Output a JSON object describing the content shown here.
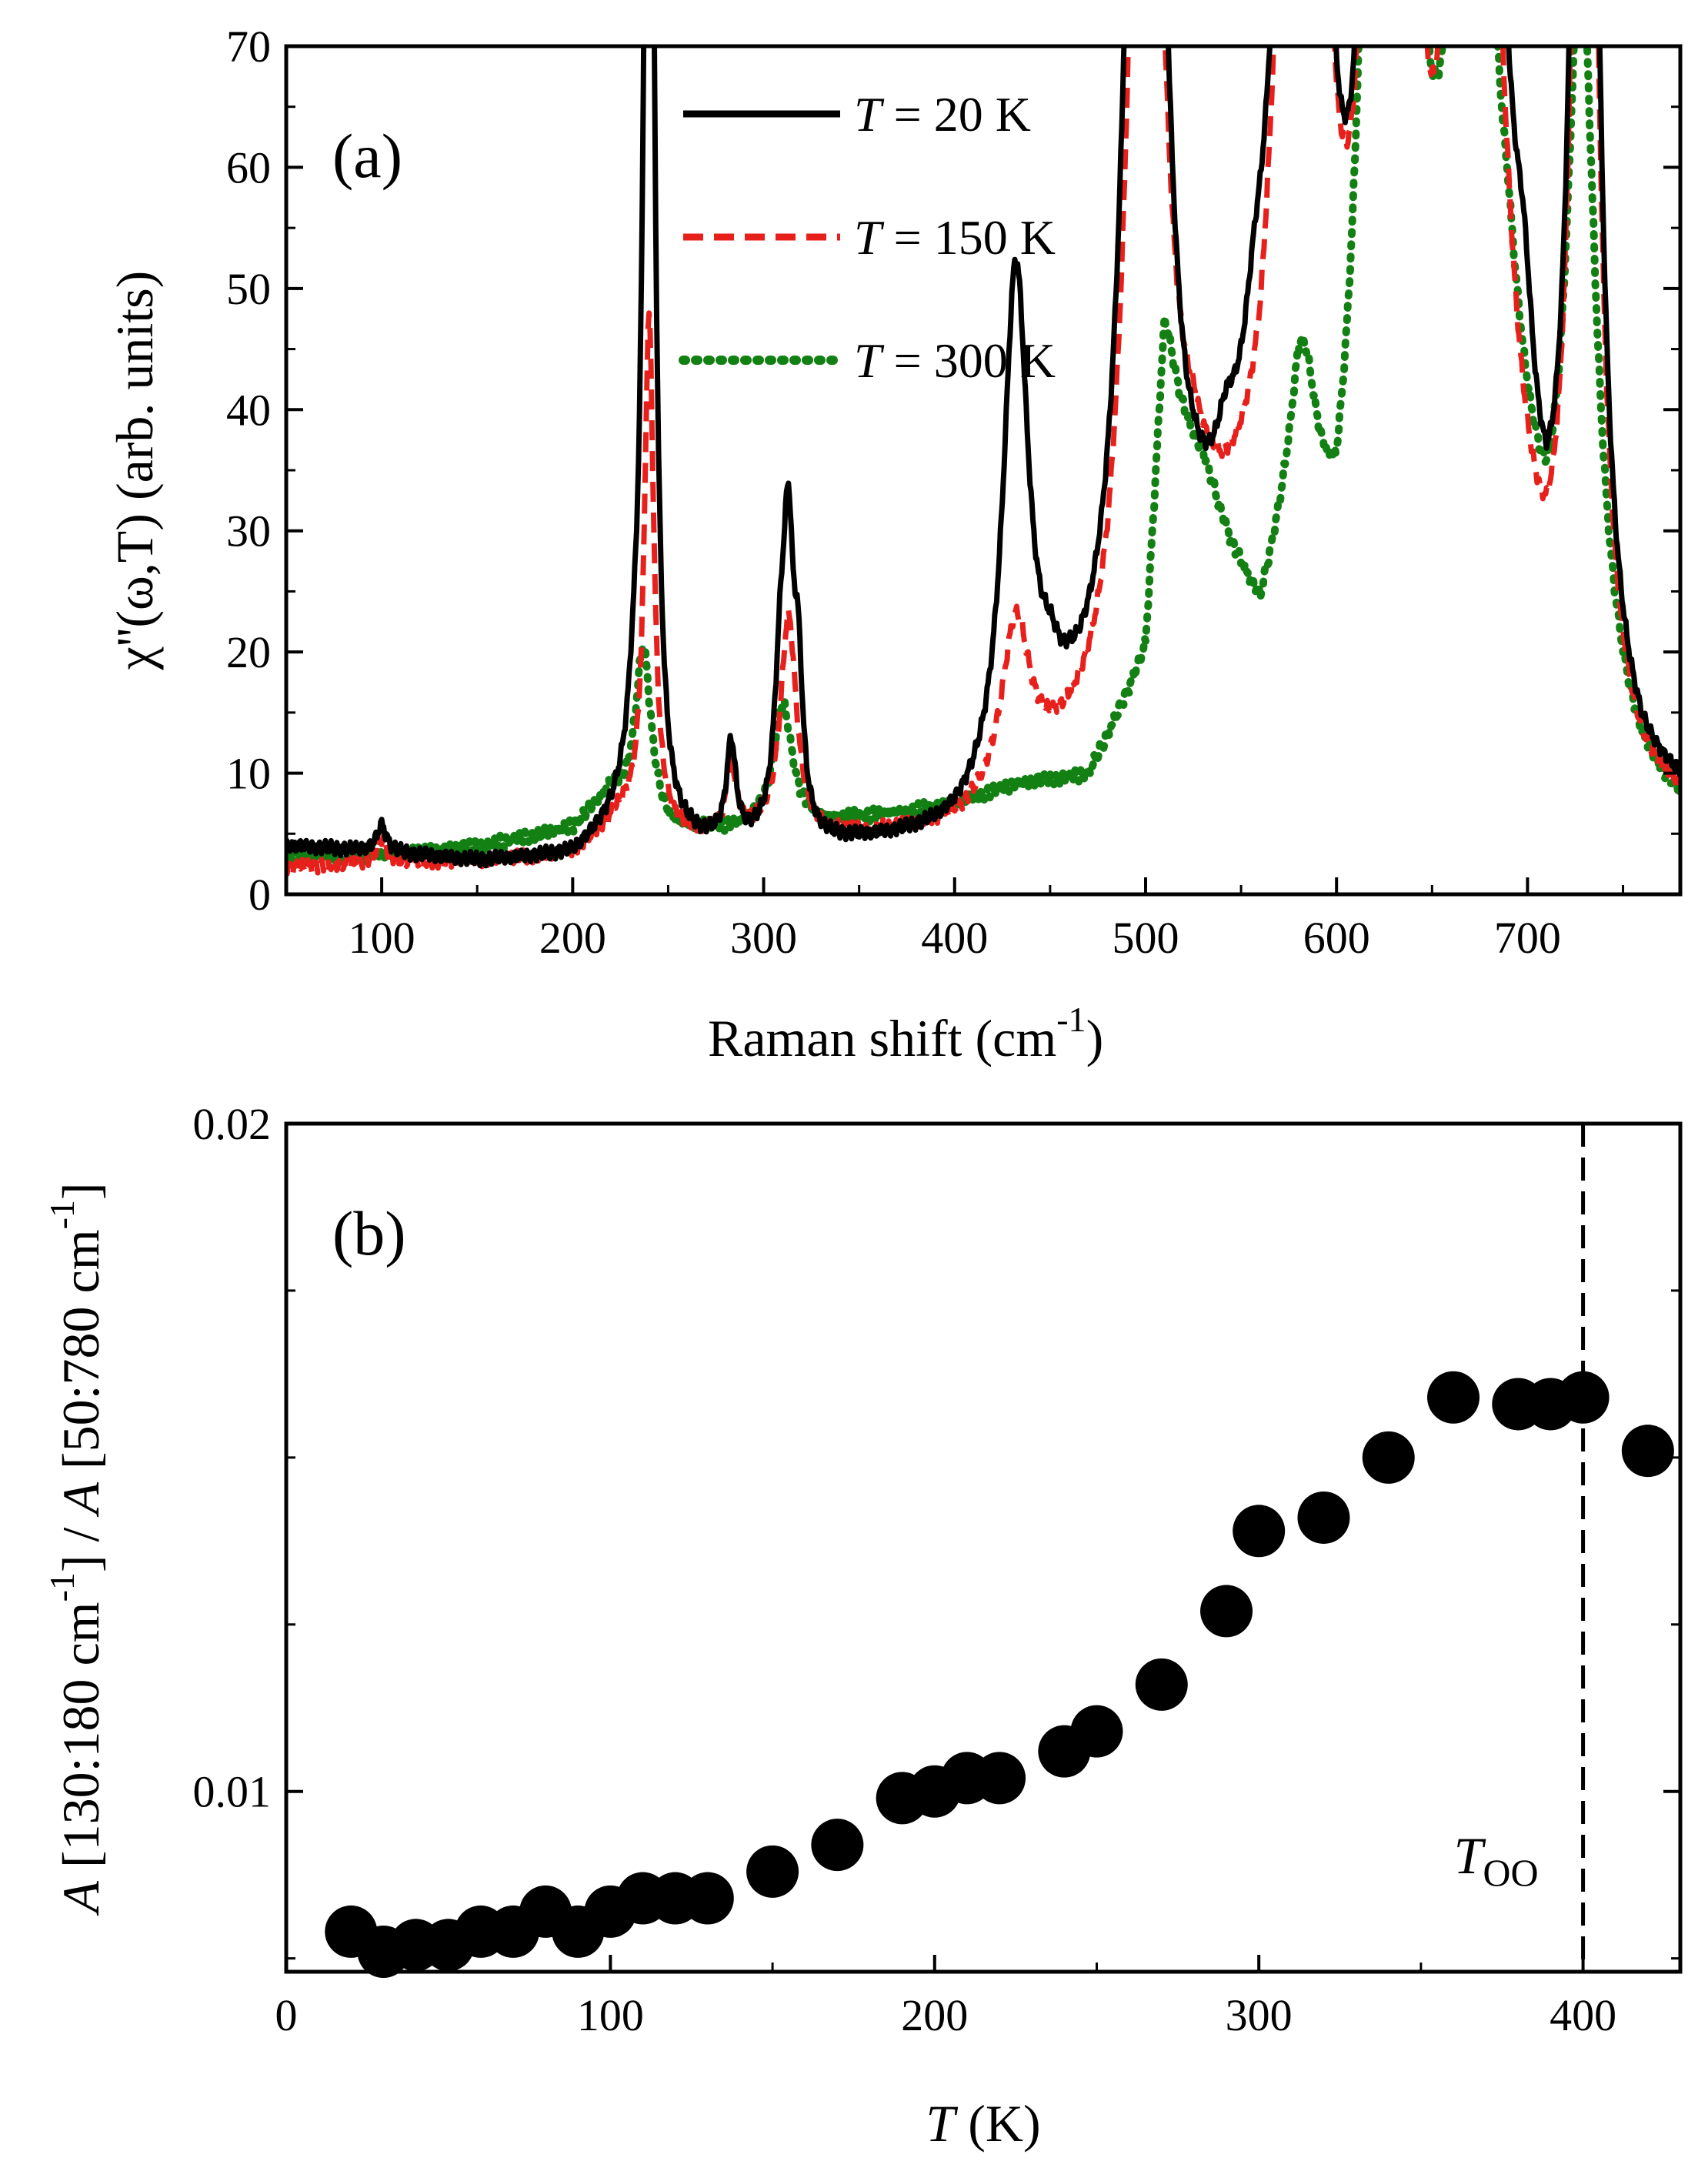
{
  "chart_data": [
    {
      "type": "line",
      "panel_label": "(a)",
      "xlabel": "Raman shift (cm",
      "xlabel_sup": "-1",
      "xlabel_close": ")",
      "ylabel": "χ''(ω,T) (arb. units)",
      "xlim": [
        50,
        780
      ],
      "ylim": [
        0,
        70
      ],
      "xticks": [
        "100",
        "200",
        "300",
        "400",
        "500",
        "600",
        "700"
      ],
      "xtick_values": [
        100,
        200,
        300,
        400,
        500,
        600,
        700
      ],
      "yticks": [
        "0",
        "10",
        "20",
        "30",
        "40",
        "50",
        "60",
        "70"
      ],
      "ytick_values": [
        0,
        10,
        20,
        30,
        40,
        50,
        60,
        70
      ],
      "legend_position": "top-center",
      "series": [
        {
          "name": "T = 20 K",
          "legend_italic": "T",
          "legend_rest": " = 20 K",
          "color": "#000000",
          "style": "solid",
          "baseline": [
            [
              50,
              3.8
            ],
            [
              100,
              3.2
            ],
            [
              150,
              2.4
            ],
            [
              200,
              2.6
            ],
            [
              225,
              5
            ],
            [
              250,
              3.2
            ],
            [
              280,
              3
            ],
            [
              300,
              3
            ],
            [
              330,
              3
            ],
            [
              400,
              3.2
            ],
            [
              430,
              5
            ],
            [
              460,
              8
            ],
            [
              480,
              7.8
            ],
            [
              510,
              10
            ],
            [
              525,
              15.8
            ],
            [
              540,
              19
            ],
            [
              560,
              24
            ],
            [
              580,
              32
            ],
            [
              600,
              14
            ],
            [
              620,
              20
            ],
            [
              640,
              14
            ],
            [
              660,
              22
            ],
            [
              690,
              24
            ],
            [
              710,
              10.5
            ],
            [
              740,
              9
            ],
            [
              760,
              6
            ],
            [
              780,
              5.8
            ]
          ],
          "peaks": [
            [
              100,
              2.2,
              3
            ],
            [
              232,
              5,
              4
            ],
            [
              240,
              120,
              3
            ],
            [
              283,
              8,
              3
            ],
            [
              309,
              13,
              4
            ],
            [
              313,
              20,
              3
            ],
            [
              318,
              12,
              3
            ],
            [
              432,
              43,
              8
            ],
            [
              450,
              3,
              6
            ],
            [
              500,
              150,
              9
            ],
            [
              542,
              4,
              6
            ],
            [
              557,
              5,
              6
            ],
            [
              583,
              150,
              10
            ],
            [
              622,
              150,
              5
            ],
            [
              634,
              150,
              6
            ],
            [
              655,
              8,
              3
            ],
            [
              672,
              150,
              10
            ],
            [
              698,
              10,
              6
            ],
            [
              730,
              150,
              6
            ]
          ]
        },
        {
          "name": "T = 150 K",
          "legend_italic": "T",
          "legend_rest": " = 150 K",
          "color": "#e8201c",
          "style": "dashed",
          "baseline": [
            [
              50,
              2
            ],
            [
              100,
              2.4
            ],
            [
              150,
              2.4
            ],
            [
              200,
              3
            ],
            [
              225,
              6
            ],
            [
              250,
              4.5
            ],
            [
              280,
              4
            ],
            [
              300,
              4.3
            ],
            [
              330,
              4
            ],
            [
              400,
              4.2
            ],
            [
              430,
              6
            ],
            [
              460,
              8.5
            ],
            [
              480,
              9.5
            ],
            [
              500,
              15
            ],
            [
              525,
              24
            ],
            [
              540,
              22
            ],
            [
              560,
              21
            ],
            [
              580,
              32
            ],
            [
              600,
              16
            ],
            [
              620,
              20
            ],
            [
              640,
              14
            ],
            [
              660,
              22
            ],
            [
              690,
              20
            ],
            [
              710,
              10
            ],
            [
              740,
              8
            ],
            [
              760,
              5.5
            ],
            [
              780,
              5
            ]
          ],
          "peaks": [
            [
              100,
              2,
              3
            ],
            [
              240,
              42,
              3
            ],
            [
              283,
              6,
              3
            ],
            [
              313,
              18,
              5
            ],
            [
              432,
              14,
              9
            ],
            [
              500,
              110,
              9
            ],
            [
              583,
              140,
              10
            ],
            [
              622,
              140,
              5
            ],
            [
              634,
              140,
              6
            ],
            [
              672,
              140,
              10
            ],
            [
              730,
              140,
              6
            ]
          ]
        },
        {
          "name": "T = 300 K",
          "legend_italic": "T",
          "legend_rest": " = 300 K",
          "color": "#138013",
          "style": "dotted",
          "baseline": [
            [
              50,
              3
            ],
            [
              100,
              3.2
            ],
            [
              150,
              3.8
            ],
            [
              200,
              5.2
            ],
            [
              220,
              8
            ],
            [
              250,
              4.8
            ],
            [
              300,
              5.2
            ],
            [
              330,
              5.5
            ],
            [
              400,
              7
            ],
            [
              430,
              8.5
            ],
            [
              470,
              9
            ],
            [
              500,
              18
            ],
            [
              510,
              40
            ],
            [
              530,
              34
            ],
            [
              545,
              26
            ],
            [
              560,
              20
            ],
            [
              580,
              30
            ],
            [
              600,
              18
            ],
            [
              620,
              28
            ],
            [
              640,
              18
            ],
            [
              660,
              30
            ],
            [
              690,
              30
            ],
            [
              710,
              15
            ],
            [
              740,
              11
            ],
            [
              760,
              7
            ],
            [
              780,
              5.2
            ]
          ],
          "peaks": [
            [
              237,
              14,
              5
            ],
            [
              310,
              10,
              6
            ],
            [
              510,
              6,
              6
            ],
            [
              583,
              10,
              8
            ],
            [
              622,
              100,
              7
            ],
            [
              634,
              100,
              8
            ],
            [
              672,
              60,
              14
            ],
            [
              728,
              60,
              9
            ]
          ]
        }
      ]
    },
    {
      "type": "scatter",
      "panel_label": "(b)",
      "xlabel_italic": "T",
      "xlabel_rest": " (K)",
      "ylabel_A1": "A",
      "ylabel_mid1": " [130:180 cm",
      "ylabel_sup1": "-1",
      "ylabel_mid2": "] / ",
      "ylabel_A2": "A",
      "ylabel_mid3": " [50:780 cm",
      "ylabel_sup2": "-1",
      "ylabel_end": "]",
      "xlim": [
        0,
        430
      ],
      "ylim": [
        0.0073,
        0.02
      ],
      "xticks": [
        "0",
        "100",
        "200",
        "300",
        "400"
      ],
      "xtick_values": [
        0,
        100,
        200,
        300,
        400
      ],
      "yticks": [
        "0.01",
        "0.02"
      ],
      "ytick_values": [
        0.01,
        0.02
      ],
      "minor_ytick_values": [
        0.0075,
        0.0125,
        0.015,
        0.0175
      ],
      "color": "#000000",
      "vline_x": 400,
      "vline_label_italic": "T",
      "vline_label_sub": "OO",
      "x": [
        20,
        30,
        40,
        50,
        60,
        70,
        80,
        90,
        100,
        110,
        120,
        130,
        150,
        170,
        190,
        200,
        210,
        220,
        240,
        250,
        270,
        290,
        300,
        320,
        340,
        360,
        380,
        390,
        400,
        420
      ],
      "y": [
        0.0079,
        0.0076,
        0.0077,
        0.0077,
        0.0079,
        0.0079,
        0.0082,
        0.0079,
        0.0082,
        0.0084,
        0.0084,
        0.0084,
        0.0088,
        0.0092,
        0.0099,
        0.01,
        0.0102,
        0.0102,
        0.0106,
        0.0109,
        0.0116,
        0.0127,
        0.0139,
        0.0141,
        0.015,
        0.0159,
        0.0158,
        0.0158,
        0.0159,
        0.0151
      ]
    }
  ]
}
